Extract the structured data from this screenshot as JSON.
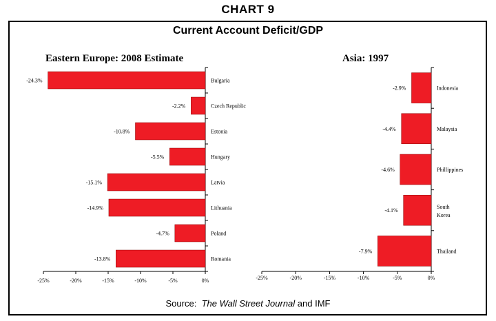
{
  "header": "CHART 9",
  "title": "Current Account Deficit/GDP",
  "source": {
    "prefix": "Source:",
    "journal": "The Wall Street Journal",
    "suffix": "and IMF"
  },
  "colors": {
    "bar": "#ee1c25",
    "axis": "#000000"
  },
  "chart_data": [
    {
      "type": "bar",
      "orientation": "horizontal",
      "title": "Eastern Europe: 2008 Estimate",
      "categories": [
        "Bulgaria",
        "Czech Republic",
        "Estonia",
        "Hungary",
        "Latvia",
        "Lithuania",
        "Poland",
        "Romania"
      ],
      "values": [
        -24.3,
        -2.2,
        -10.8,
        -5.5,
        -15.1,
        -14.9,
        -4.7,
        -13.8
      ],
      "value_labels": [
        "-24.3%",
        "-2.2%",
        "-10.8%",
        "-5.5%",
        "-15.1%",
        "-14.9%",
        "-4.7%",
        "-13.8%"
      ],
      "xlim": [
        -25,
        0
      ],
      "xticks": [
        "-25%",
        "-20%",
        "-15%",
        "-10%",
        "-5%",
        "0%"
      ],
      "xlabel": "",
      "ylabel": ""
    },
    {
      "type": "bar",
      "orientation": "horizontal",
      "title": "Asia: 1997",
      "categories": [
        "Indonesia",
        "Malaysia",
        "Phillippines",
        "South Korea",
        "Thailand"
      ],
      "values": [
        -2.9,
        -4.4,
        -4.6,
        -4.1,
        -7.9
      ],
      "value_labels": [
        "-2.9%",
        "-4.4%",
        "-4.6%",
        "-4.1%",
        "-7.9%"
      ],
      "xlim": [
        -25,
        0
      ],
      "xticks": [
        "-25%",
        "-20%",
        "-15%",
        "-10%",
        "-5%",
        "0%"
      ],
      "xlabel": "",
      "ylabel": ""
    }
  ]
}
